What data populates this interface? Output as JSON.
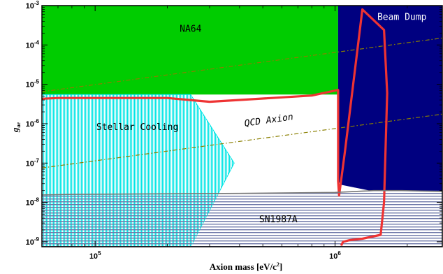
{
  "chart_data": {
    "type": "area",
    "xlabel": "Axion mass [eV/c",
    "xlabel_sup": "2",
    "xlabel_close": "]",
    "ylabel": "g",
    "ylabel_sub": "ae",
    "x_scale": "log",
    "y_scale": "log",
    "xlim": [
      60000,
      2800000
    ],
    "ylim": [
      7.5e-10,
      0.001
    ],
    "x_ticks": [
      {
        "value": 100000,
        "mant": "10",
        "exp": "5"
      },
      {
        "value": 1000000,
        "mant": "10",
        "exp": "6"
      }
    ],
    "y_ticks": [
      {
        "value": 0.001,
        "mant": "10",
        "exp": "-3"
      },
      {
        "value": 0.0001,
        "mant": "10",
        "exp": "-4"
      },
      {
        "value": 1e-05,
        "mant": "10",
        "exp": "-5"
      },
      {
        "value": 1e-06,
        "mant": "10",
        "exp": "-6"
      },
      {
        "value": 1e-07,
        "mant": "10",
        "exp": "-7"
      },
      {
        "value": 1e-08,
        "mant": "10",
        "exp": "-8"
      },
      {
        "value": 1e-09,
        "mant": "10",
        "exp": "-9"
      }
    ],
    "regions": [
      {
        "name": "NA64",
        "color": "#00cc00",
        "style": "filled",
        "points": [
          [
            60000,
            0.001
          ],
          [
            1030000,
            0.001
          ],
          [
            1030000,
            5.5e-06
          ],
          [
            60000,
            5.5e-06
          ]
        ]
      },
      {
        "name": "Beam Dump",
        "color": "#000080",
        "style": "filled",
        "points": [
          [
            1030000,
            0.001
          ],
          [
            2800000,
            0.001
          ],
          [
            2800000,
            1.9e-08
          ],
          [
            1450000,
            1.9e-08
          ],
          [
            1060000,
            2.8e-08
          ],
          [
            1030000,
            3.5e-08
          ]
        ]
      },
      {
        "name": "Stellar Cooling",
        "color": "#00e5e5",
        "style": "vertical-hatch",
        "points": [
          [
            60000,
            5.5e-06
          ],
          [
            250000,
            5.5e-06
          ],
          [
            380000,
            1e-07
          ],
          [
            250000,
            7.5e-10
          ],
          [
            60000,
            7.5e-10
          ]
        ]
      },
      {
        "name": "SN1987A",
        "color": "#6e78a8",
        "style": "horizontal-hatch",
        "points": [
          [
            60000,
            1.55e-08
          ],
          [
            400000,
            1.7e-08
          ],
          [
            1000000,
            1.8e-08
          ],
          [
            1450000,
            2e-08
          ],
          [
            2800000,
            2e-08
          ],
          [
            2800000,
            7.5e-10
          ],
          [
            60000,
            7.5e-10
          ]
        ]
      }
    ],
    "series": [
      {
        "name": "QCD Axion",
        "color": "#8a7f00",
        "style": "dash-dot",
        "x": [
          60000,
          2800000
        ],
        "y": [
          7.5e-08,
          1.75e-06
        ]
      },
      {
        "color": "#8a7f00",
        "style": "dash-dot",
        "x": [
          60000,
          2800000
        ],
        "y": [
          6.5e-06,
          0.00015
        ]
      },
      {
        "color": "#ee3333",
        "style": "solid",
        "x": [
          60000,
          70000,
          100000,
          200000,
          300000,
          800000,
          1030000,
          1030000,
          1040000,
          1100000,
          1300000,
          1600000,
          1650000,
          1600000,
          1550000,
          1300000,
          1150000,
          1080000,
          1060000
        ],
        "y": [
          4.3e-06,
          4.5e-06,
          4.5e-06,
          4.5e-06,
          3.6e-06,
          5.2e-06,
          7.2e-06,
          3.5e-08,
          1.5e-08,
          2e-07,
          0.0008,
          0.00024,
          6e-06,
          1e-08,
          1.5e-09,
          1.2e-09,
          1.1e-09,
          1e-09,
          8e-10
        ]
      },
      {
        "color": "#777777",
        "style": "solid",
        "x": [
          60000,
          80000,
          400000,
          1000000,
          1450000,
          1900000,
          2800000
        ],
        "y": [
          1.55e-08,
          1.6e-08,
          1.7e-08,
          1.8e-08,
          2e-08,
          2e-08,
          1.9e-08
        ]
      }
    ],
    "labels": [
      {
        "text": "NA64",
        "x": 250000,
        "y": 0.00025,
        "color": "#000000"
      },
      {
        "text": "Beam Dump",
        "x": 1900000,
        "y": 0.0005,
        "color": "#ffffff"
      },
      {
        "text": "Stellar Cooling",
        "x": 150000,
        "y": 8e-07,
        "color": "#000000"
      },
      {
        "text": "QCD Axion",
        "x": 530000,
        "y": 1.2e-06,
        "color": "#000000"
      },
      {
        "text": "SN1987A",
        "x": 580000,
        "y": 3.6e-09,
        "color": "#000000"
      }
    ]
  }
}
